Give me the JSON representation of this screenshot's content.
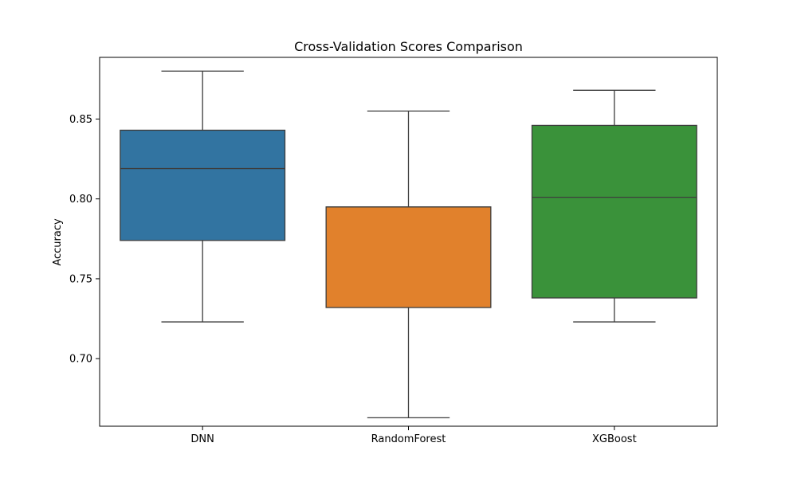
{
  "chart_data": {
    "type": "box",
    "title": "Cross-Validation Scores Comparison",
    "xlabel": "",
    "ylabel": "Accuracy",
    "ylim": [
      0.6577,
      0.8886
    ],
    "yticks": [
      0.7,
      0.75,
      0.8,
      0.85
    ],
    "ytick_labels": [
      "0.70",
      "0.75",
      "0.80",
      "0.85"
    ],
    "grid": false,
    "legend": "none",
    "categories": [
      "DNN",
      "RandomForest",
      "XGBoost"
    ],
    "boxes": [
      {
        "category": "DNN",
        "whisker_low": 0.723,
        "q1": 0.774,
        "median": 0.819,
        "q3": 0.843,
        "whisker_high": 0.88,
        "color": "#3274a1"
      },
      {
        "category": "RandomForest",
        "whisker_low": 0.663,
        "q1": 0.732,
        "median": 0.795,
        "q3": 0.795,
        "whisker_high": 0.855,
        "color": "#e1812c"
      },
      {
        "category": "XGBoost",
        "whisker_low": 0.723,
        "q1": 0.738,
        "median": 0.801,
        "q3": 0.846,
        "whisker_high": 0.868,
        "color": "#3a923a"
      }
    ],
    "line_color": "#3d3d3d"
  }
}
